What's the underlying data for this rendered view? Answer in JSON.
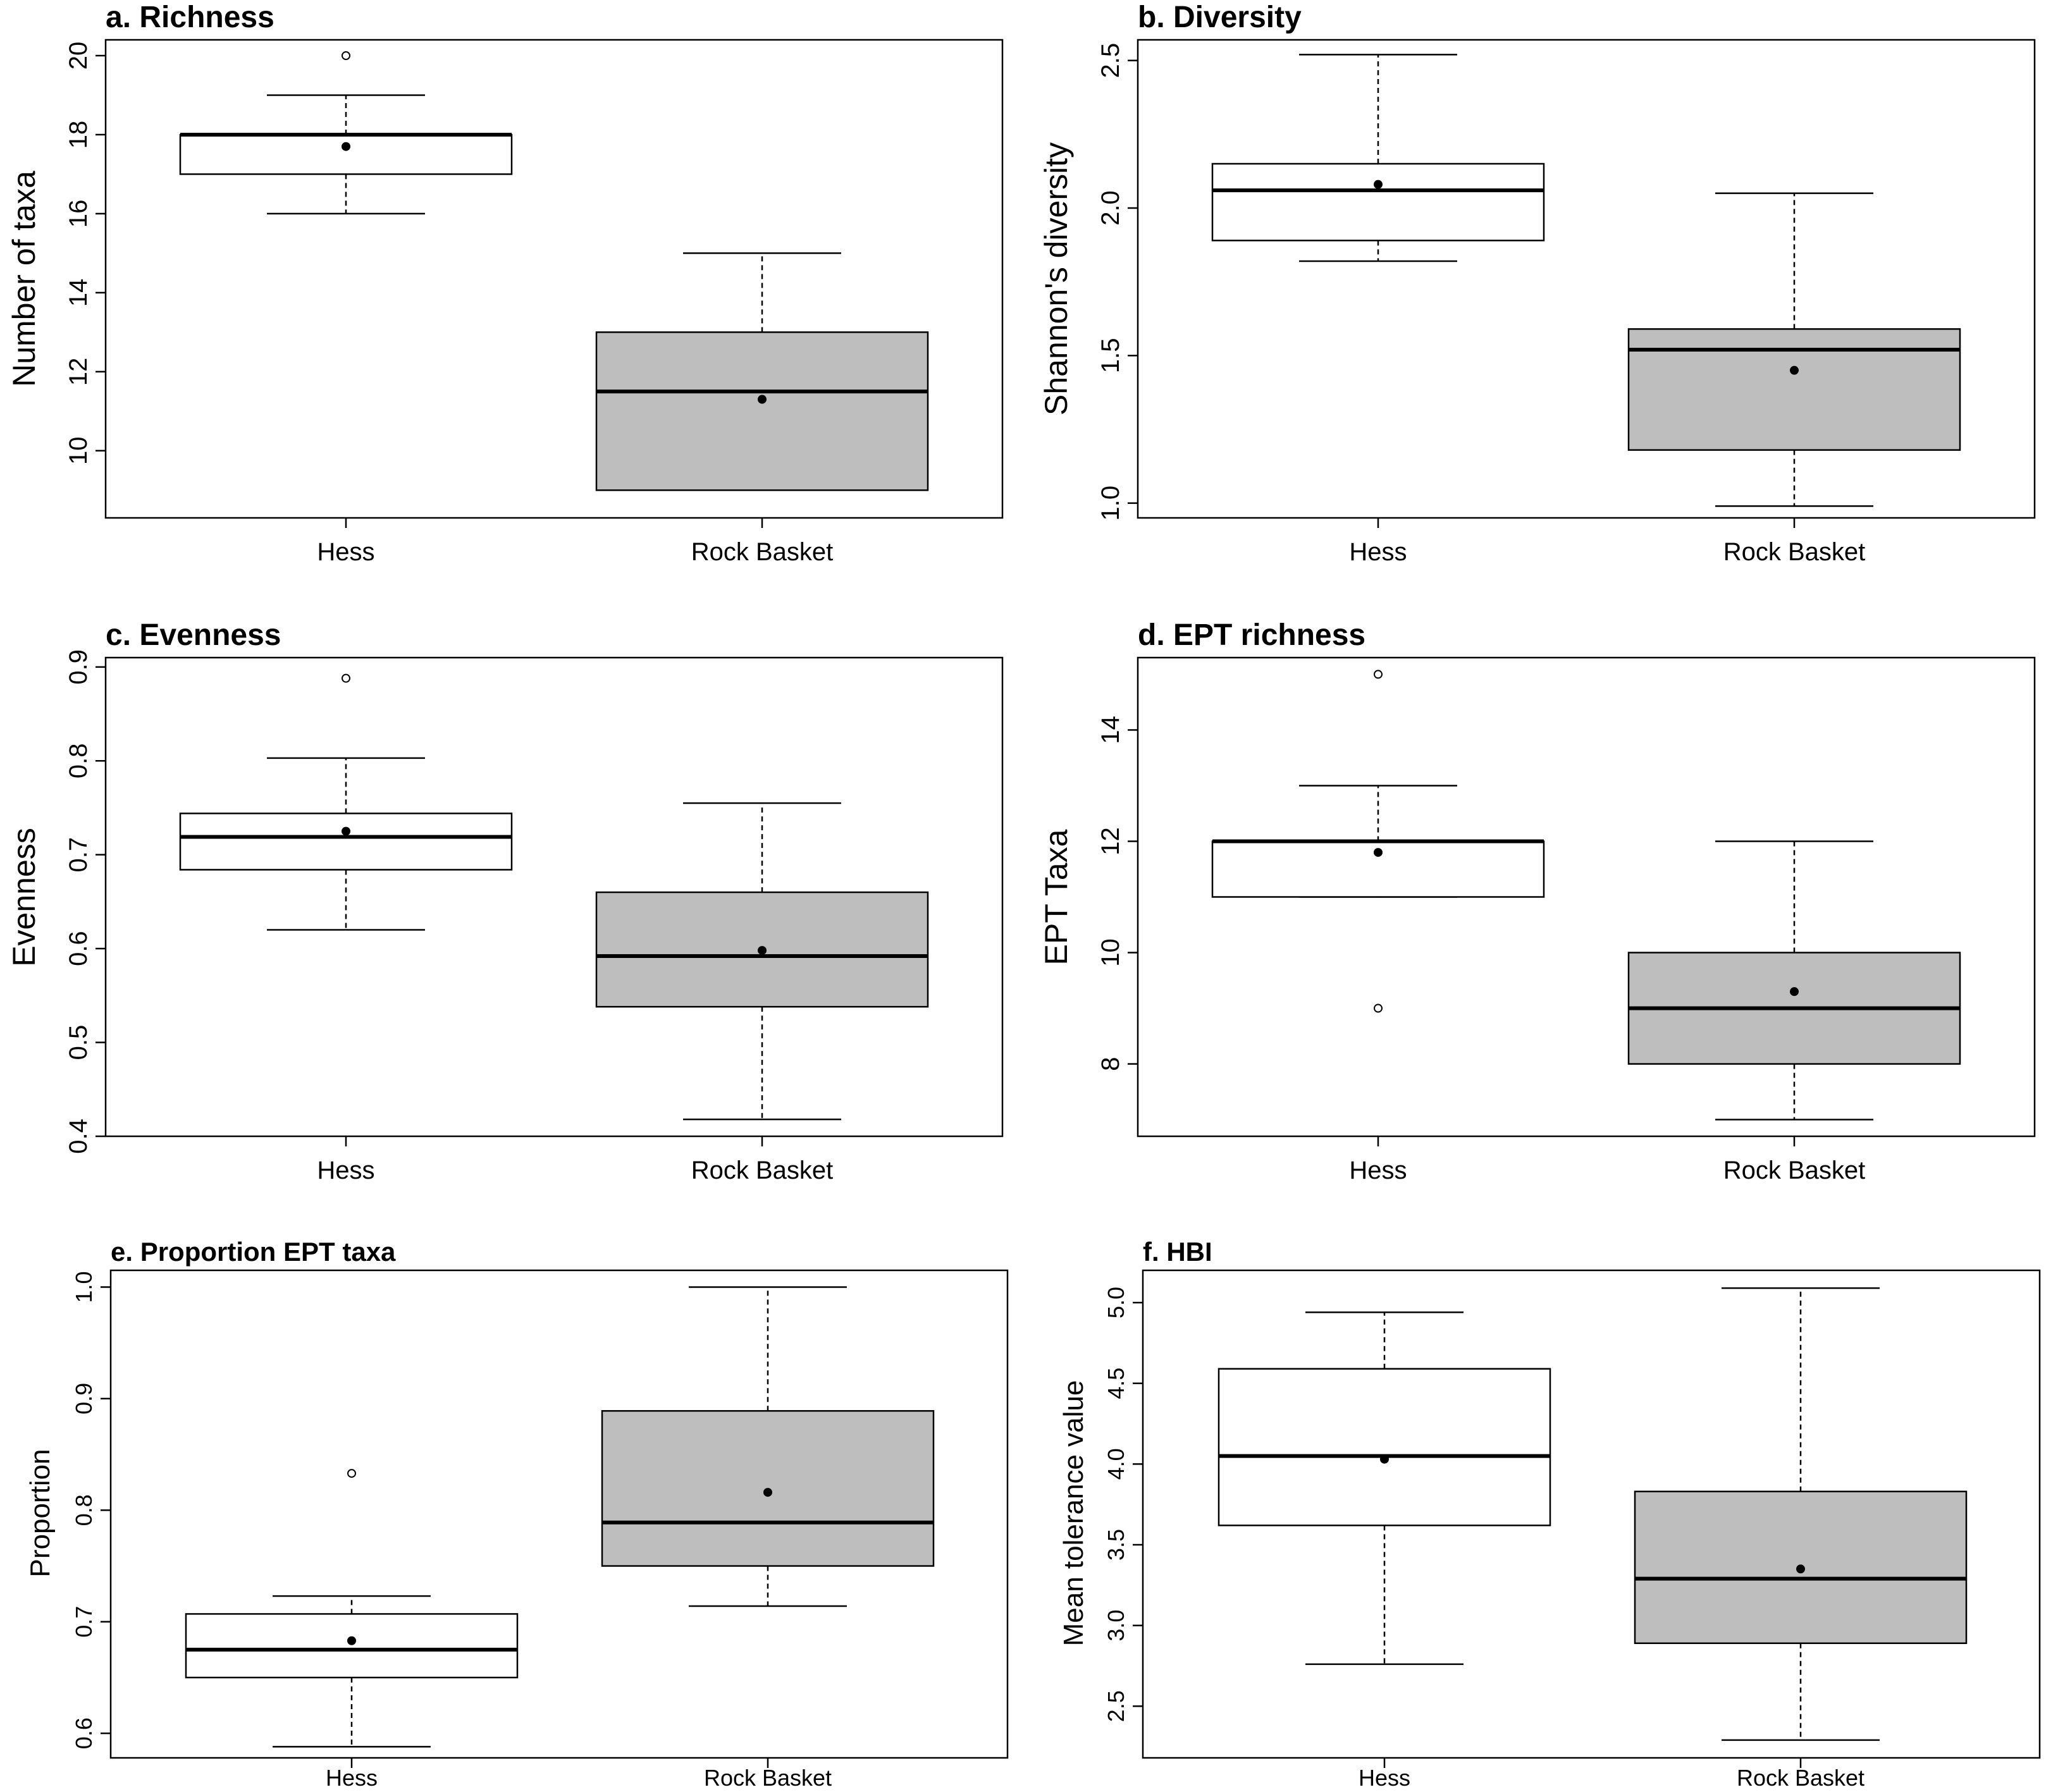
{
  "figure": {
    "type": "multi-panel boxplot"
  },
  "chart_data": [
    {
      "type": "boxplot",
      "title": "a. Richness",
      "ylabel": "Number of taxa",
      "ylim": [
        8.3,
        20.4
      ],
      "yticks": [
        10,
        12,
        14,
        16,
        18,
        20
      ],
      "categories": [
        "Hess",
        "Rock Basket"
      ],
      "series": [
        {
          "name": "Hess",
          "fill": "#ffffff",
          "whisker_low": 16,
          "q1": 17,
          "median": 18,
          "q3": 18,
          "whisker_high": 19,
          "mean": 17.7,
          "outliers": [
            20
          ]
        },
        {
          "name": "Rock Basket",
          "fill": "#bebebe",
          "whisker_low": 9,
          "q1": 9,
          "median": 11.5,
          "q3": 13,
          "whisker_high": 15,
          "mean": 11.3,
          "outliers": []
        }
      ]
    },
    {
      "type": "boxplot",
      "title": "b. Diversity",
      "ylabel": "Shannon's diversity",
      "ylim": [
        0.95,
        2.57
      ],
      "yticks": [
        "1.0",
        "1.5",
        "2.0",
        "2.5"
      ],
      "categories": [
        "Hess",
        "Rock Basket"
      ],
      "series": [
        {
          "name": "Hess",
          "fill": "#ffffff",
          "whisker_low": 1.82,
          "q1": 1.89,
          "median": 2.06,
          "q3": 2.15,
          "whisker_high": 2.52,
          "mean": 2.08,
          "outliers": []
        },
        {
          "name": "Rock Basket",
          "fill": "#bebebe",
          "whisker_low": 0.99,
          "q1": 1.18,
          "median": 1.52,
          "q3": 1.59,
          "whisker_high": 2.05,
          "mean": 1.45,
          "outliers": []
        }
      ]
    },
    {
      "type": "boxplot",
      "title": "c. Evenness",
      "ylabel": "Evenness",
      "ylim": [
        0.4,
        0.91
      ],
      "yticks": [
        "0.4",
        "0.5",
        "0.6",
        "0.7",
        "0.8",
        "0.9"
      ],
      "categories": [
        "Hess",
        "Rock Basket"
      ],
      "series": [
        {
          "name": "Hess",
          "fill": "#ffffff",
          "whisker_low": 0.62,
          "q1": 0.684,
          "median": 0.719,
          "q3": 0.744,
          "whisker_high": 0.803,
          "mean": 0.725,
          "outliers": [
            0.888
          ]
        },
        {
          "name": "Rock Basket",
          "fill": "#bebebe",
          "whisker_low": 0.418,
          "q1": 0.538,
          "median": 0.592,
          "q3": 0.66,
          "whisker_high": 0.755,
          "mean": 0.598,
          "outliers": []
        }
      ]
    },
    {
      "type": "boxplot",
      "title": "d. EPT richness",
      "ylabel": "EPT Taxa",
      "ylim": [
        6.7,
        15.3
      ],
      "yticks": [
        8,
        10,
        12,
        14
      ],
      "categories": [
        "Hess",
        "Rock Basket"
      ],
      "series": [
        {
          "name": "Hess",
          "fill": "#ffffff",
          "whisker_low": 11,
          "q1": 11,
          "median": 12,
          "q3": 12,
          "whisker_high": 13,
          "mean": 11.8,
          "outliers": [
            15,
            9
          ]
        },
        {
          "name": "Rock Basket",
          "fill": "#bebebe",
          "whisker_low": 7,
          "q1": 8,
          "median": 9,
          "q3": 10,
          "whisker_high": 12,
          "mean": 9.3,
          "outliers": []
        }
      ]
    },
    {
      "type": "boxplot",
      "title": "e. Proportion EPT taxa",
      "ylabel": "Proportion",
      "ylim": [
        0.578,
        1.015
      ],
      "yticks": [
        "0.6",
        "0.7",
        "0.8",
        "0.9",
        "1.0"
      ],
      "categories": [
        "Hess",
        "Rock Basket"
      ],
      "series": [
        {
          "name": "Hess",
          "fill": "#ffffff",
          "whisker_low": 0.588,
          "q1": 0.65,
          "median": 0.675,
          "q3": 0.707,
          "whisker_high": 0.723,
          "mean": 0.683,
          "outliers": [
            0.833
          ]
        },
        {
          "name": "Rock Basket",
          "fill": "#bebebe",
          "whisker_low": 0.714,
          "q1": 0.75,
          "median": 0.789,
          "q3": 0.889,
          "whisker_high": 1.0,
          "mean": 0.816,
          "outliers": []
        }
      ]
    },
    {
      "type": "boxplot",
      "title": "f. HBI",
      "ylabel": "Mean tolerance value",
      "ylim": [
        2.18,
        5.2
      ],
      "yticks": [
        "2.5",
        "3.0",
        "3.5",
        "4.0",
        "4.5",
        "5.0"
      ],
      "categories": [
        "Hess",
        "Rock Basket"
      ],
      "series": [
        {
          "name": "Hess",
          "fill": "#ffffff",
          "whisker_low": 2.76,
          "q1": 3.62,
          "median": 4.05,
          "q3": 4.59,
          "whisker_high": 4.94,
          "mean": 4.03,
          "outliers": []
        },
        {
          "name": "Rock Basket",
          "fill": "#bebebe",
          "whisker_low": 2.29,
          "q1": 2.89,
          "median": 3.29,
          "q3": 3.83,
          "whisker_high": 5.09,
          "mean": 3.35,
          "outliers": []
        }
      ]
    }
  ]
}
